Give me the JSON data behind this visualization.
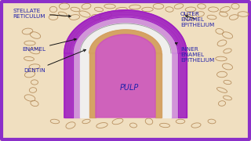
{
  "bg_color": "#f0dfc0",
  "border_color": "#8b2fc9",
  "border_width": 3,
  "label_font": 5.2,
  "labels": {
    "stellate_reticulum": "STELLATE\nRETICULUM",
    "enamel": "ENAMEL",
    "dentin": "DENTIN",
    "pulp": "PULP",
    "outer_enamel": "OUTER\nENAMEL\nEPITHELIUM",
    "inner_enamel": "INNER\nENAMEL\nEPITHELIUM"
  },
  "colors": {
    "outer_purple": "#a020c0",
    "stellate_fill": "#cc88dd",
    "enamel_fill": "#f0f0f0",
    "dentin_fill": "#d4a060",
    "pulp_fill": "#cc55bb",
    "bg_fill": "#e8c898",
    "label_color": "#2222aa",
    "arrow_color": "#111111",
    "dot_color": "#b89060"
  }
}
